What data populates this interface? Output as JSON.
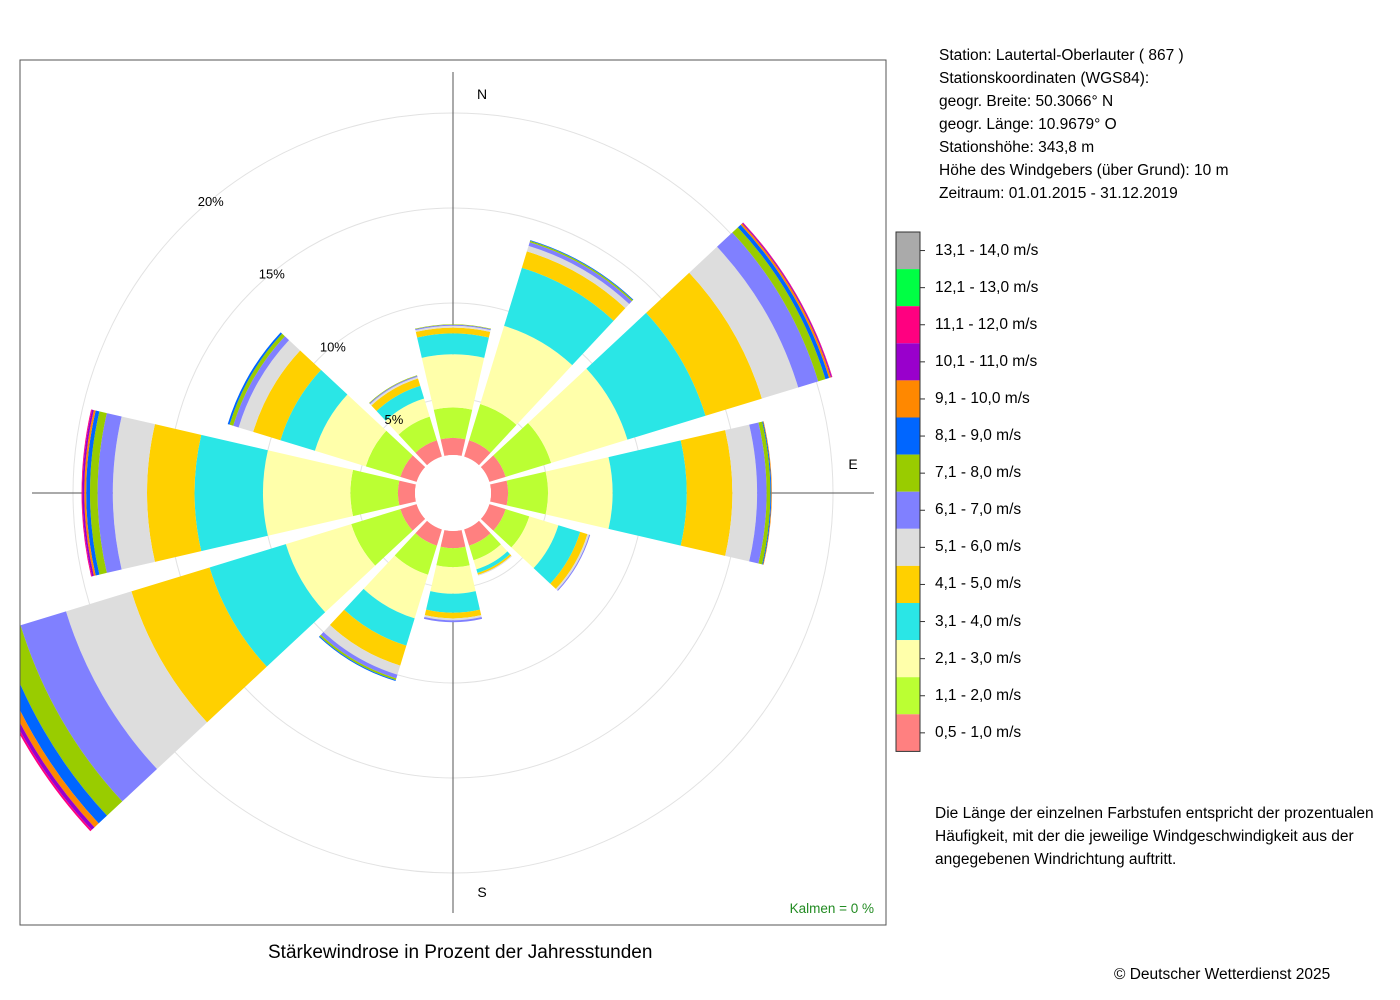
{
  "header": {
    "station": "Station:  Lautertal-Oberlauter  ( 867 )",
    "coords_title": "Stationskoordinaten (WGS84):",
    "latitude": "geogr. Breite: 50.3066° N",
    "longitude": "geogr. Länge: 10.9679° O",
    "elevation": "Stationshöhe: 343,8 m",
    "sensor_height": "Höhe des Windgebers (über Grund): 10 m",
    "period": "Zeitraum: 01.01.2015 - 31.12.2019"
  },
  "note": {
    "line1": "Die Länge der einzelnen Farbstufen entspricht der prozentualen",
    "line2": "Häufigkeit, mit der die jeweilige Windgeschwindigkeit aus der",
    "line3": "angegebenen Windrichtung auftritt."
  },
  "footer": {
    "title": "Stärkewindrose in Prozent der Jahresstunden",
    "copyright": "© Deutscher Wetterdienst  2025"
  },
  "chart_data": {
    "type": "wind-rose",
    "title": "Stärkewindrose in Prozent der Jahresstunden",
    "calm_label": "Kalmen  =  0 %",
    "radial_unit": "%",
    "radial_ticks": [
      {
        "value": 5,
        "label": "5%"
      },
      {
        "value": 10,
        "label": "10%"
      },
      {
        "value": 15,
        "label": "15%"
      },
      {
        "value": 20,
        "label": "20%"
      }
    ],
    "compass_labels": {
      "N": "N",
      "E": "E",
      "S": "S"
    },
    "inner_offset_percent": 1.0,
    "speed_classes": [
      {
        "label": "0,5 - 1,0 m/s",
        "color": "#ff8080"
      },
      {
        "label": "1,1 - 2,0 m/s",
        "color": "#bbff33"
      },
      {
        "label": "2,1 - 3,0 m/s",
        "color": "#ffffaa"
      },
      {
        "label": "3,1 - 4,0 m/s",
        "color": "#2ae6e6"
      },
      {
        "label": "4,1 - 5,0 m/s",
        "color": "#ffd000"
      },
      {
        "label": "5,1 - 6,0 m/s",
        "color": "#dddddd"
      },
      {
        "label": "6,1 - 7,0 m/s",
        "color": "#8080ff"
      },
      {
        "label": "7,1 - 8,0 m/s",
        "color": "#99cc00"
      },
      {
        "label": "8,1 - 9,0 m/s",
        "color": "#0066ff"
      },
      {
        "label": "9,1 - 10,0 m/s",
        "color": "#ff8800"
      },
      {
        "label": "10,1 - 11,0 m/s",
        "color": "#9900cc"
      },
      {
        "label": "11,1 - 12,0 m/s",
        "color": "#ff0080"
      },
      {
        "label": "12,1 - 13,0 m/s",
        "color": "#00ff44"
      },
      {
        "label": "13,1 - 14,0 m/s",
        "color": "#aaaaaa"
      }
    ],
    "sectors": [
      {
        "direction_deg": 0,
        "values": [
          0.9,
          1.6,
          2.8,
          1.1,
          0.3,
          0.1,
          0.05,
          0.03
        ]
      },
      {
        "direction_deg": 30,
        "values": [
          0.9,
          2.0,
          4.3,
          3.2,
          0.9,
          0.3,
          0.2,
          0.08,
          0.04
        ]
      },
      {
        "direction_deg": 60,
        "values": [
          0.9,
          2.5,
          4.2,
          4.3,
          3.1,
          2.0,
          1.1,
          0.4,
          0.2,
          0.1,
          0.05,
          0.03
        ]
      },
      {
        "direction_deg": 90,
        "values": [
          0.9,
          2.1,
          3.4,
          3.9,
          2.4,
          1.3,
          0.5,
          0.2,
          0.05,
          0.03
        ]
      },
      {
        "direction_deg": 120,
        "values": [
          0.9,
          1.3,
          1.6,
          1.2,
          0.4,
          0.1,
          0.05
        ]
      },
      {
        "direction_deg": 150,
        "values": [
          0.9,
          0.8,
          0.5,
          0.2,
          0.1,
          0.05
        ]
      },
      {
        "direction_deg": 180,
        "values": [
          0.9,
          1.0,
          1.4,
          1.0,
          0.3,
          0.1,
          0.1
        ]
      },
      {
        "direction_deg": 210,
        "values": [
          0.9,
          1.6,
          2.4,
          1.5,
          1.1,
          0.5,
          0.2,
          0.1,
          0.05
        ]
      },
      {
        "direction_deg": 240,
        "values": [
          0.9,
          2.7,
          3.6,
          4.2,
          4.3,
          3.6,
          2.5,
          1.1,
          0.6,
          0.3,
          0.2,
          0.1
        ]
      },
      {
        "direction_deg": 270,
        "values": [
          0.9,
          2.5,
          4.6,
          3.6,
          2.5,
          1.8,
          0.8,
          0.4,
          0.2,
          0.1,
          0.1,
          0.05
        ]
      },
      {
        "direction_deg": 300,
        "values": [
          0.9,
          1.9,
          2.8,
          1.9,
          1.5,
          0.8,
          0.3,
          0.2,
          0.1
        ]
      },
      {
        "direction_deg": 330,
        "values": [
          0.9,
          1.3,
          1.0,
          0.7,
          0.4,
          0.1,
          0.05,
          0.03
        ]
      }
    ]
  }
}
